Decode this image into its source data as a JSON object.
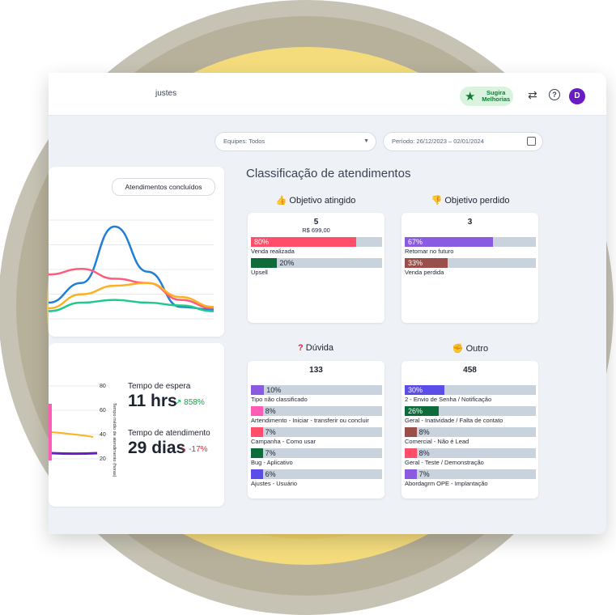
{
  "header": {
    "breadcrumb": "justes",
    "suggest_label": "Sugira Melhorias",
    "avatar_initial": "D"
  },
  "filters": {
    "teams": "Equipes: Todos",
    "period": "Período: 26/12/2023 – 02/01/2024"
  },
  "chart_card": {
    "button_label": "Atendimentos concluídos"
  },
  "chart_data": {
    "type": "line",
    "series": [
      {
        "color": "#1f7ed8",
        "values": [
          8,
          22,
          62,
          30,
          5,
          3
        ]
      },
      {
        "color": "#ff5c7a",
        "values": [
          28,
          32,
          25,
          22,
          10,
          4
        ]
      },
      {
        "color": "#ffb020",
        "values": [
          4,
          14,
          20,
          22,
          12,
          5
        ]
      },
      {
        "color": "#20c98a",
        "values": [
          2,
          8,
          10,
          8,
          6,
          2
        ]
      }
    ],
    "grid": true
  },
  "times_card": {
    "ticks": [
      "80",
      "60",
      "40",
      "20"
    ],
    "axis_label": "Tempo médio de atendimento (horas)",
    "wait_title": "Tempo de espera",
    "wait_value": "11 hrs",
    "wait_delta": "858%",
    "service_title": "Tempo de atendimento",
    "service_value": "29 dias",
    "service_delta": "-17%"
  },
  "classification": {
    "title": "Classificação de atendimentos",
    "groups": [
      {
        "title": "Objetivo atingido",
        "icon": "thumbs-up-icon",
        "total": "5",
        "amount": "R$ 699,00",
        "items": [
          {
            "pct": "80%",
            "value": 80,
            "label": "Venda realizada",
            "color": "#ff4d6a"
          },
          {
            "pct": "20%",
            "value": 20,
            "label": "Upsell",
            "color": "#0e6b3a"
          }
        ]
      },
      {
        "title": "Objetivo perdido",
        "icon": "thumbs-down-icon",
        "total": "3",
        "amount": "",
        "items": [
          {
            "pct": "67%",
            "value": 67,
            "label": "Retomar no futuro",
            "color": "#8a5be0"
          },
          {
            "pct": "33%",
            "value": 33,
            "label": "Venda perdida",
            "color": "#9a4f4a"
          }
        ]
      },
      {
        "title": "Dúvida",
        "icon": "question-icon",
        "total": "133",
        "amount": "",
        "items": [
          {
            "pct": "10%",
            "value": 10,
            "label": "Tipo não classificado",
            "color": "#8a5be0"
          },
          {
            "pct": "8%",
            "value": 8,
            "label": "Artendimento - Iniciar - transferir ou concluir",
            "color": "#ff5cb8"
          },
          {
            "pct": "7%",
            "value": 7,
            "label": "Campanha - Como usar",
            "color": "#ff4d6a"
          },
          {
            "pct": "7%",
            "value": 7,
            "label": "Bug - Aplicativo",
            "color": "#0e6b3a"
          },
          {
            "pct": "6%",
            "value": 6,
            "label": "Ajustes - Usuário",
            "color": "#5b4de8"
          }
        ]
      },
      {
        "title": "Outro",
        "icon": "fist-icon",
        "total": "458",
        "amount": "",
        "items": [
          {
            "pct": "30%",
            "value": 30,
            "label": "2 - Envio de Senha / Notificação",
            "color": "#5b4de8"
          },
          {
            "pct": "26%",
            "value": 26,
            "label": "Geral - Inatividade / Falta de contato",
            "color": "#0e6b3a"
          },
          {
            "pct": "8%",
            "value": 8,
            "label": "Comercial - Não é Lead",
            "color": "#9a4f4a"
          },
          {
            "pct": "8%",
            "value": 8,
            "label": "Geral - Teste / Demonstração",
            "color": "#ff4d6a"
          },
          {
            "pct": "7%",
            "value": 7,
            "label": "Abordagrm OPE - Implantação",
            "color": "#8a5be0"
          }
        ]
      }
    ]
  }
}
